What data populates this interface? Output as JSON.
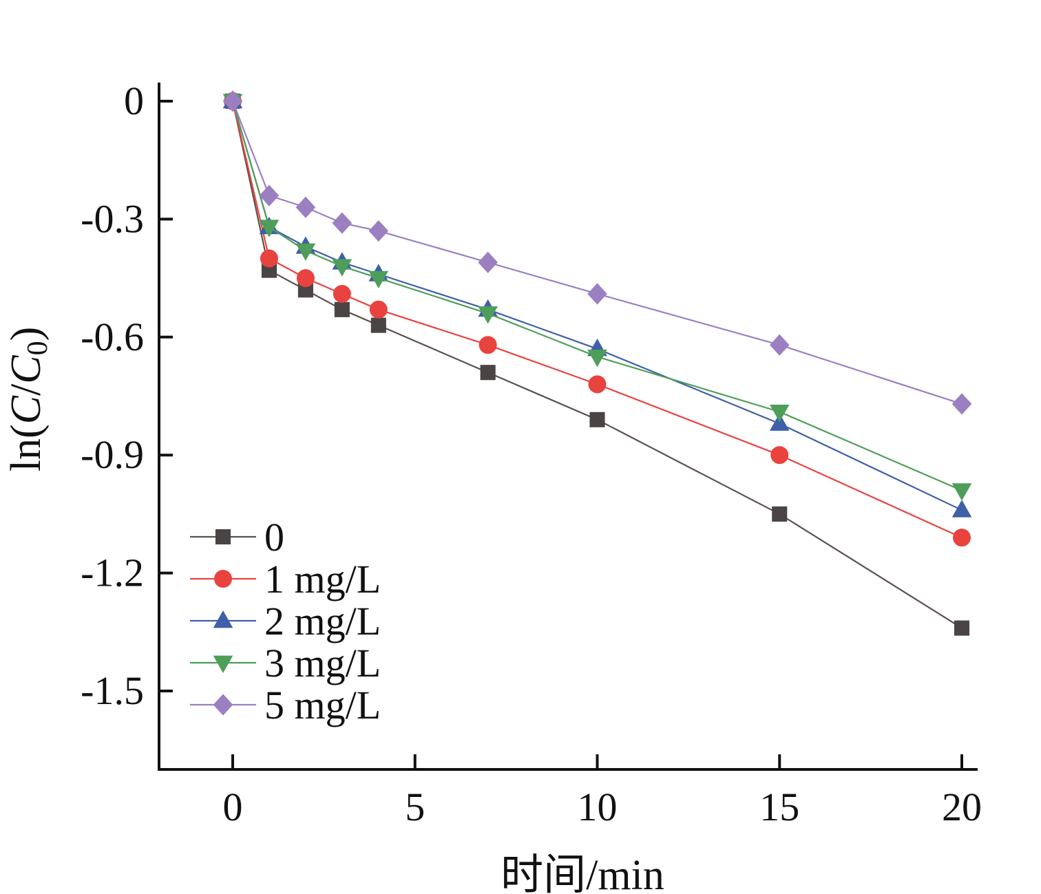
{
  "chart_data": {
    "type": "line",
    "xlabel": "时间/min",
    "ylabel_parts": [
      "ln(",
      "C",
      "/",
      "C",
      "0",
      ")"
    ],
    "xlim": [
      -2,
      20.5
    ],
    "ylim": [
      -1.7,
      0.05
    ],
    "xticks": [
      0,
      5,
      10,
      15,
      20
    ],
    "xtick_labels": [
      "0",
      "5",
      "10",
      "15",
      "20"
    ],
    "yticks": [
      0,
      -0.3,
      -0.6,
      -0.9,
      -1.2,
      -1.5
    ],
    "ytick_labels": [
      "0",
      "-0.3",
      "-0.6",
      "-0.9",
      "-1.2",
      "-1.5"
    ],
    "legend_position": "lower-left",
    "grid": false,
    "x": [
      0,
      1,
      2,
      3,
      4,
      7,
      10,
      15,
      20
    ],
    "series": [
      {
        "name": "0",
        "marker": "square",
        "line_color": "#5a5050",
        "marker_color": "#4a4444",
        "values": [
          0,
          -0.43,
          -0.48,
          -0.53,
          -0.57,
          -0.69,
          -0.81,
          -1.05,
          -1.34
        ]
      },
      {
        "name": "1 mg/L",
        "marker": "circle",
        "line_color": "#e8433f",
        "marker_color": "#e8433f",
        "values": [
          0,
          -0.4,
          -0.45,
          -0.49,
          -0.53,
          -0.62,
          -0.72,
          -0.9,
          -1.11
        ]
      },
      {
        "name": "2 mg/L",
        "marker": "triangle-up",
        "line_color": "#3f5fa8",
        "marker_color": "#3f5fa8",
        "values": [
          0,
          -0.32,
          -0.37,
          -0.41,
          -0.44,
          -0.53,
          -0.63,
          -0.82,
          -1.04
        ]
      },
      {
        "name": "3 mg/L",
        "marker": "triangle-down",
        "line_color": "#4e9e5a",
        "marker_color": "#4e9e5a",
        "values": [
          0,
          -0.32,
          -0.38,
          -0.42,
          -0.45,
          -0.54,
          -0.65,
          -0.79,
          -0.99
        ]
      },
      {
        "name": "5 mg/L",
        "marker": "diamond",
        "line_color": "#9b7fc0",
        "marker_color": "#9b7fc0",
        "values": [
          0,
          -0.24,
          -0.27,
          -0.31,
          -0.33,
          -0.41,
          -0.49,
          -0.62,
          -0.77
        ]
      }
    ]
  }
}
